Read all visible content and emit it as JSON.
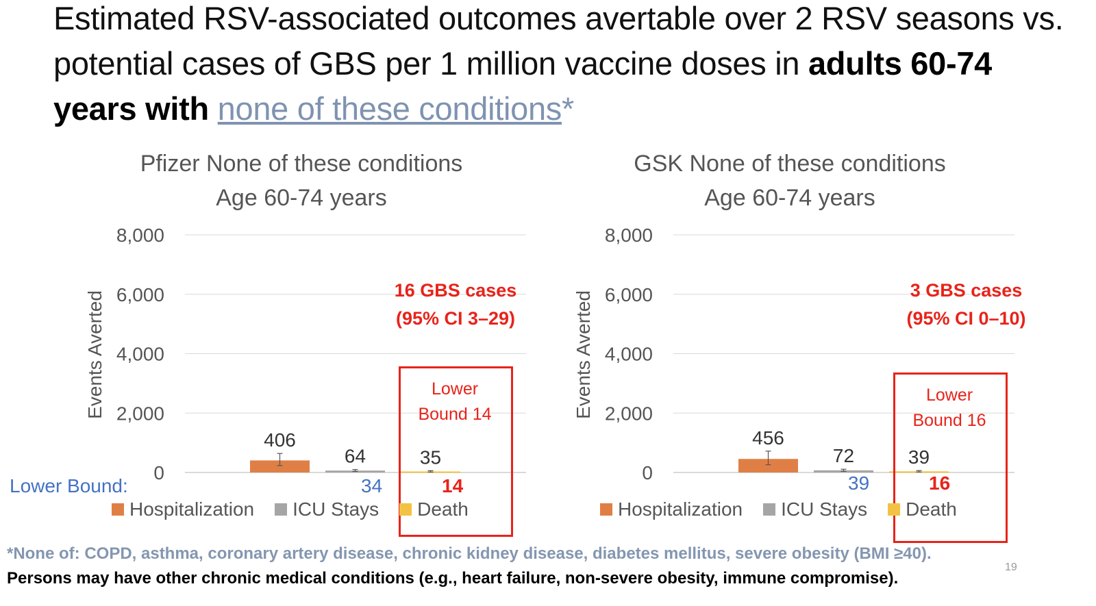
{
  "title": {
    "part1": "Estimated RSV-associated outcomes avertable over 2 RSV seasons vs. potential cases of GBS per 1 million vaccine doses in ",
    "bold": "adults 60-74 years with",
    "link": "none of these conditions",
    "asterisk": "*"
  },
  "chart_data": [
    {
      "type": "bar",
      "title": "Pfizer None of these conditions",
      "subtitle": "Age 60-74 years",
      "ylabel": "Events Averted",
      "ylim": [
        0,
        8000
      ],
      "yticks": [
        "0",
        "2,000",
        "4,000",
        "6,000",
        "8,000"
      ],
      "grid": true,
      "legend_position": "bottom",
      "series": [
        {
          "name": "Hospitalization",
          "value": 406,
          "label": "406",
          "error": [
            230,
            640
          ],
          "color": "#e07f45"
        },
        {
          "name": "ICU Stays",
          "value": 64,
          "label": "64",
          "error": [
            34,
            100
          ],
          "color": "#a5a5a5"
        },
        {
          "name": "Death",
          "value": 35,
          "label": "35",
          "error": [
            14,
            60
          ],
          "color": "#f3c244"
        }
      ],
      "lower_bound_label": "Lower Bound:",
      "lower_bounds": {
        "icu": "34",
        "death": "14"
      },
      "annotation": {
        "line1": "16 GBS cases",
        "line2": "(95% CI 3–29)"
      },
      "box_text": {
        "line1": "Lower",
        "line2": "Bound 14"
      }
    },
    {
      "type": "bar",
      "title": "GSK None of these conditions",
      "subtitle": "Age 60-74 years",
      "ylabel": "Events Averted",
      "ylim": [
        0,
        8000
      ],
      "yticks": [
        "0",
        "2,000",
        "4,000",
        "6,000",
        "8,000"
      ],
      "grid": true,
      "legend_position": "bottom",
      "series": [
        {
          "name": "Hospitalization",
          "value": 456,
          "label": "456",
          "error": [
            260,
            720
          ],
          "color": "#e07f45"
        },
        {
          "name": "ICU Stays",
          "value": 72,
          "label": "72",
          "error": [
            39,
            110
          ],
          "color": "#a5a5a5"
        },
        {
          "name": "Death",
          "value": 39,
          "label": "39",
          "error": [
            16,
            65
          ],
          "color": "#f3c244"
        }
      ],
      "lower_bounds": {
        "icu": "39",
        "death": "16"
      },
      "annotation": {
        "line1": "3 GBS cases",
        "line2": "(95% CI 0–10)"
      },
      "box_text": {
        "line1": "Lower",
        "line2": "Bound 16"
      }
    }
  ],
  "footnote": {
    "line1": "*None of: COPD, asthma, coronary artery disease, chronic kidney disease, diabetes mellitus, severe obesity (BMI ≥40).",
    "line2": "Persons may have other chronic medical conditions (e.g., heart failure, non-severe obesity, immune compromise)."
  },
  "page_number": "19"
}
